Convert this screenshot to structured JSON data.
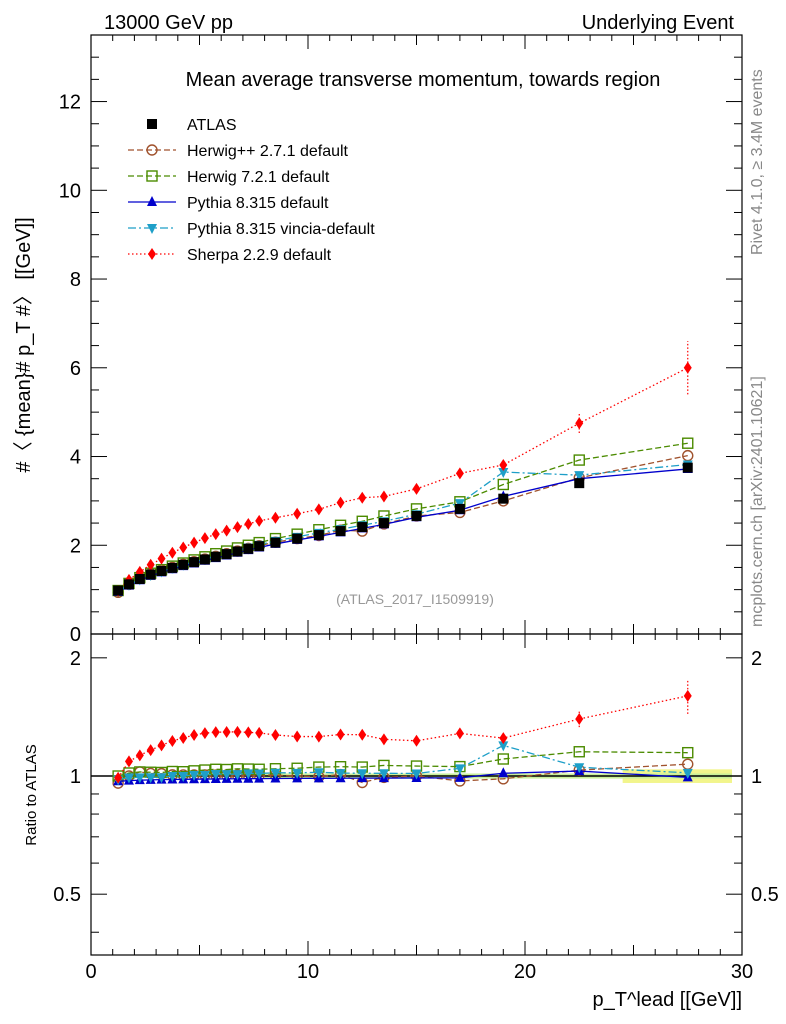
{
  "header": {
    "left": "13000 GeV pp",
    "right": "Underlying Event",
    "side_rivet": "Rivet 4.1.0, ≥ 3.4M events",
    "side_mcplots": "mcplots.cern.ch [arXiv:2401.10621]"
  },
  "colors": {
    "atlas": "#000000",
    "herwigpp": "#a0522d",
    "herwig7": "#4b8b00",
    "pythia": "#0000cc",
    "vincia": "#1e9fc8",
    "sherpa": "#ff0000",
    "band_outer": "#f2f58c",
    "band_inner": "#c8ef9a"
  },
  "chart_data": [
    {
      "type": "line",
      "title": "Mean average transverse momentum, towards region",
      "analysis_label": "(ATLAS_2017_I1509919)",
      "ylabel": "#〈 {mean}# p_T #〉 [[GeV]]",
      "xlim": [
        0,
        30
      ],
      "ylim": [
        0,
        13.5
      ],
      "yticks": [
        0,
        2,
        4,
        6,
        8,
        10,
        12
      ],
      "legend_position": "top-left",
      "x": [
        1.25,
        1.75,
        2.25,
        2.75,
        3.25,
        3.75,
        4.25,
        4.75,
        5.25,
        5.75,
        6.25,
        6.75,
        7.25,
        7.75,
        8.5,
        9.5,
        10.5,
        11.5,
        12.5,
        13.5,
        15.0,
        17.0,
        19.0,
        22.5,
        27.5
      ],
      "series": [
        {
          "name": "ATLAS",
          "key": "atlas",
          "marker": "square",
          "values": [
            0.98,
            1.12,
            1.24,
            1.34,
            1.42,
            1.49,
            1.56,
            1.62,
            1.68,
            1.74,
            1.8,
            1.86,
            1.92,
            1.98,
            2.06,
            2.15,
            2.23,
            2.32,
            2.41,
            2.5,
            2.66,
            2.82,
            3.05,
            3.4,
            3.75
          ]
        },
        {
          "name": "Herwig++ 2.7.1 default",
          "key": "herwigpp",
          "marker": "circle-open",
          "dash": "6,3",
          "values": [
            0.94,
            1.12,
            1.27,
            1.36,
            1.44,
            1.5,
            1.57,
            1.63,
            1.69,
            1.75,
            1.81,
            1.87,
            1.93,
            1.99,
            2.07,
            2.15,
            2.22,
            2.34,
            2.32,
            2.48,
            2.66,
            2.74,
            3.0,
            3.52,
            4.02
          ]
        },
        {
          "name": "Herwig 7.2.1 default",
          "key": "herwig7",
          "marker": "square-open",
          "dash": "6,3",
          "values": [
            0.98,
            1.14,
            1.27,
            1.37,
            1.45,
            1.53,
            1.6,
            1.67,
            1.74,
            1.81,
            1.87,
            1.94,
            2.0,
            2.06,
            2.15,
            2.25,
            2.35,
            2.45,
            2.54,
            2.66,
            2.82,
            2.98,
            3.37,
            3.92,
            4.3
          ]
        },
        {
          "name": "Pythia 8.315 default",
          "key": "pythia",
          "marker": "triangle-up",
          "dash": "",
          "values": [
            0.95,
            1.09,
            1.21,
            1.31,
            1.39,
            1.46,
            1.53,
            1.59,
            1.65,
            1.71,
            1.77,
            1.83,
            1.89,
            1.95,
            2.03,
            2.12,
            2.2,
            2.29,
            2.38,
            2.47,
            2.63,
            2.79,
            3.1,
            3.5,
            3.72
          ]
        },
        {
          "name": "Pythia 8.315 vincia-default",
          "key": "vincia",
          "marker": "triangle-down",
          "dash": "8,3,2,3",
          "values": [
            0.96,
            1.11,
            1.23,
            1.33,
            1.41,
            1.49,
            1.56,
            1.63,
            1.69,
            1.76,
            1.82,
            1.88,
            1.95,
            2.01,
            2.1,
            2.19,
            2.28,
            2.36,
            2.45,
            2.54,
            2.7,
            2.95,
            3.65,
            3.58,
            3.82
          ]
        },
        {
          "name": "Sherpa 2.2.9 default",
          "key": "sherpa",
          "marker": "diamond",
          "dash": "1.5,2.5",
          "values": [
            0.97,
            1.22,
            1.4,
            1.56,
            1.7,
            1.83,
            1.95,
            2.06,
            2.16,
            2.25,
            2.33,
            2.41,
            2.48,
            2.55,
            2.62,
            2.71,
            2.81,
            2.96,
            3.07,
            3.1,
            3.27,
            3.62,
            3.81,
            4.75,
            6.0
          ]
        }
      ],
      "sherpa_errors": [
        [
          22.5,
          0.22
        ],
        [
          27.5,
          0.6
        ]
      ]
    },
    {
      "type": "line",
      "ylabel": "Ratio to ATLAS",
      "xlabel": "p_T^lead [[GeV]]",
      "xlim": [
        0,
        30
      ],
      "ylim": [
        0.35,
        2.3
      ],
      "yticks": [
        0.5,
        1,
        2
      ],
      "ytick_labels": [
        "0.5",
        "1",
        "2"
      ],
      "xticks": [
        0,
        10,
        20,
        30
      ],
      "xtick_labels": [
        "0",
        "10",
        "20",
        "30"
      ]
    }
  ]
}
